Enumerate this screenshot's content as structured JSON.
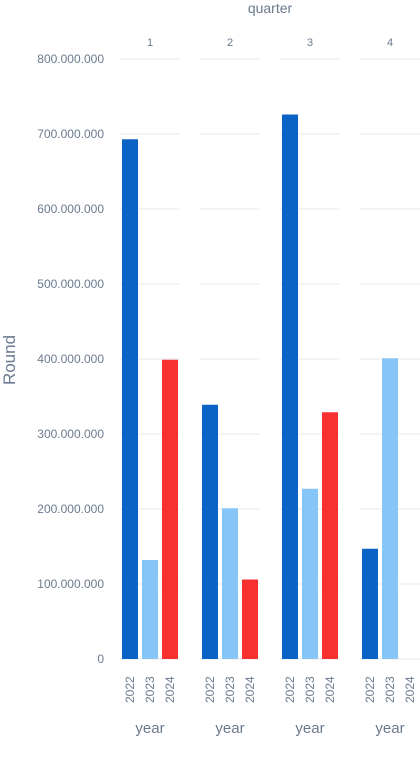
{
  "chart_data": {
    "type": "bar",
    "column_title": "quarter",
    "facets": [
      "1",
      "2",
      "3",
      "4"
    ],
    "categories": [
      "2022",
      "2023",
      "2024"
    ],
    "xlabel": "year",
    "ylabel": "Round",
    "ylim": [
      0,
      800000000
    ],
    "yticks": [
      "0",
      "100.000.000",
      "200.000.000",
      "300.000.000",
      "400.000.000",
      "500.000.000",
      "600.000.000",
      "700.000.000",
      "800.000.000"
    ],
    "ytick_values": [
      0,
      100000000,
      200000000,
      300000000,
      400000000,
      500000000,
      600000000,
      700000000,
      800000000
    ],
    "colors": {
      "2022": "#0b63c5",
      "2023": "#86c5f7",
      "2024": "#f73030"
    },
    "grid": true,
    "values": {
      "1": [
        693000000,
        132000000,
        399000000
      ],
      "2": [
        339000000,
        201000000,
        106000000
      ],
      "3": [
        726000000,
        227000000,
        329000000
      ],
      "4": [
        147000000,
        401000000,
        0
      ]
    }
  }
}
